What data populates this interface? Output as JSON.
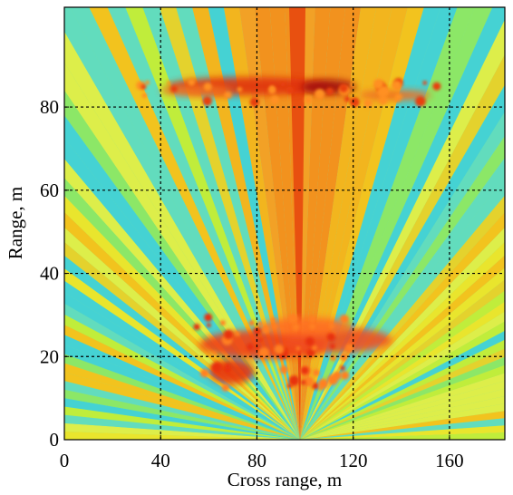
{
  "chart_data": {
    "type": "heatmap",
    "xlabel": "Cross range, m",
    "ylabel": "Range, m",
    "xlim": [
      0,
      183
    ],
    "ylim": [
      0,
      104
    ],
    "xticks": [
      0,
      40,
      80,
      120,
      160
    ],
    "yticks": [
      0,
      20,
      40,
      60,
      80
    ],
    "grid": true
  }
}
